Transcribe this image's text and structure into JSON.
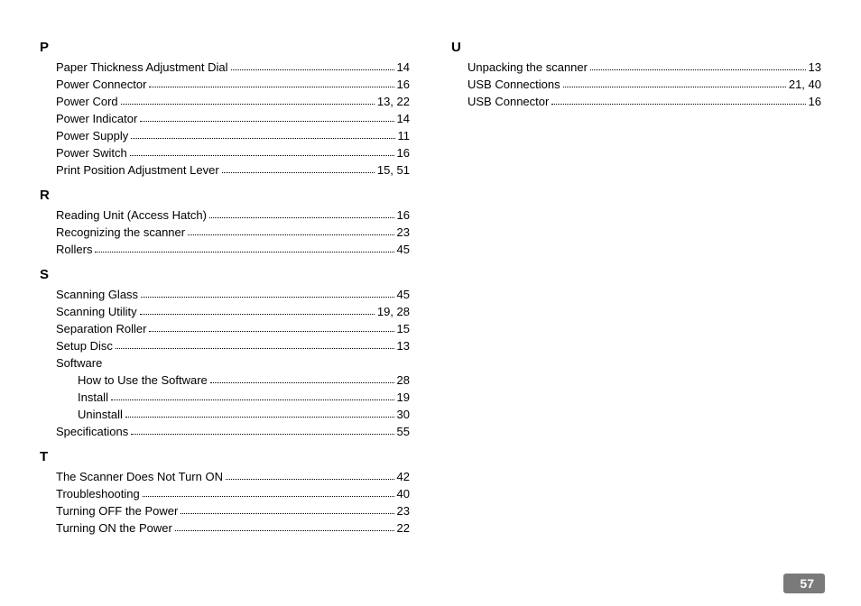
{
  "page_number": "57",
  "columns": [
    {
      "sections": [
        {
          "letter": "P",
          "entries": [
            {
              "term": "Paper Thickness Adjustment Dial",
              "pages": "14"
            },
            {
              "term": "Power Connector",
              "pages": "16"
            },
            {
              "term": "Power Cord",
              "pages": "13, 22"
            },
            {
              "term": "Power Indicator",
              "pages": "14"
            },
            {
              "term": "Power Supply",
              "pages": "11"
            },
            {
              "term": "Power Switch",
              "pages": "16"
            },
            {
              "term": "Print Position Adjustment Lever",
              "pages": "15, 51"
            }
          ]
        },
        {
          "letter": "R",
          "entries": [
            {
              "term": "Reading Unit (Access Hatch)",
              "pages": "16"
            },
            {
              "term": "Recognizing the scanner",
              "pages": "23"
            },
            {
              "term": "Rollers",
              "pages": "45"
            }
          ]
        },
        {
          "letter": "S",
          "entries": [
            {
              "term": "Scanning Glass",
              "pages": "45"
            },
            {
              "term": "Scanning Utility",
              "pages": "19, 28"
            },
            {
              "term": "Separation Roller",
              "pages": "15"
            },
            {
              "term": "Setup Disc",
              "pages": "13"
            },
            {
              "term": "Software",
              "pages": "",
              "noleader": true
            },
            {
              "term": "How to Use the Software",
              "pages": "28",
              "sub": true
            },
            {
              "term": "Install",
              "pages": "19",
              "sub": true
            },
            {
              "term": "Uninstall",
              "pages": "30",
              "sub": true
            },
            {
              "term": "Specifications",
              "pages": "55"
            }
          ]
        },
        {
          "letter": "T",
          "entries": [
            {
              "term": "The Scanner Does Not Turn ON",
              "pages": "42"
            },
            {
              "term": "Troubleshooting",
              "pages": "40"
            },
            {
              "term": "Turning OFF the Power",
              "pages": "23"
            },
            {
              "term": "Turning ON the Power",
              "pages": "22"
            }
          ]
        }
      ]
    },
    {
      "sections": [
        {
          "letter": "U",
          "entries": [
            {
              "term": "Unpacking the scanner",
              "pages": "13"
            },
            {
              "term": "USB Connections",
              "pages": "21, 40"
            },
            {
              "term": "USB Connector",
              "pages": "16"
            }
          ]
        }
      ]
    }
  ]
}
